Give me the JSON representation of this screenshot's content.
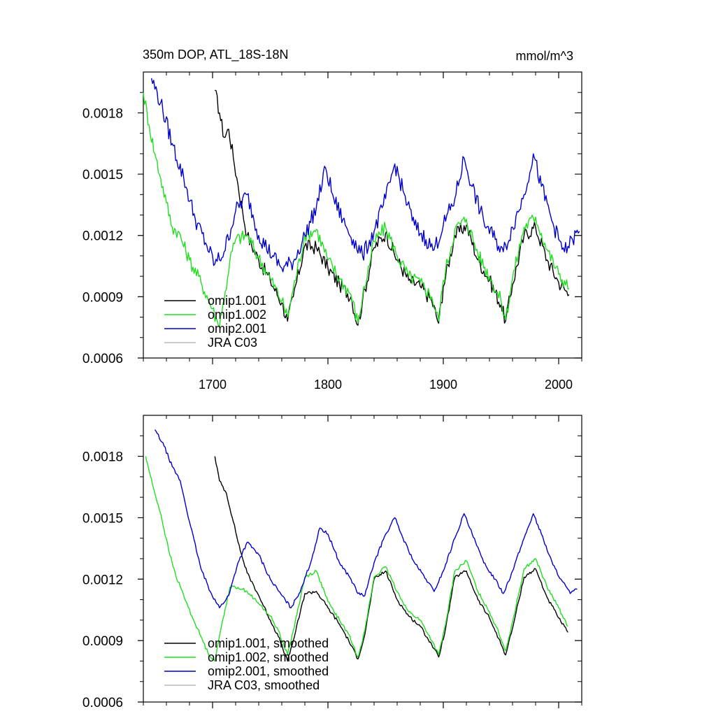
{
  "chart_data": [
    {
      "type": "line",
      "title": "350m DOP, ATL_18S-18N",
      "units": "mmol/m^3",
      "xlim": [
        1640,
        2020
      ],
      "ylim": [
        0.0006,
        0.002
      ],
      "xticks": [
        {
          "value": 1700,
          "label": "1700"
        },
        {
          "value": 1800,
          "label": "1800"
        },
        {
          "value": 1900,
          "label": "1900"
        },
        {
          "value": 2000,
          "label": "2000"
        }
      ],
      "yticks": [
        {
          "value": 0.0006,
          "label": "0.0006"
        },
        {
          "value": 0.0009,
          "label": "0.0009"
        },
        {
          "value": 0.0012,
          "label": "0.0012"
        },
        {
          "value": 0.0015,
          "label": "0.0015"
        },
        {
          "value": 0.0018,
          "label": "0.0018"
        }
      ],
      "legend": {
        "position": "bottom-left",
        "entries": [
          {
            "label": "omip1.001",
            "color": "#000000"
          },
          {
            "label": "omip1.002",
            "color": "#22dd22"
          },
          {
            "label": "omip2.001",
            "color": "#0000cc"
          },
          {
            "label": "JRA C03",
            "color": "#bbbbbb"
          }
        ]
      },
      "series": [
        {
          "name": "omip1.001",
          "color": "#000000",
          "noise": 3.5e-05,
          "x": [
            1702,
            1706,
            1710,
            1714,
            1718,
            1722,
            1726,
            1730,
            1740,
            1750,
            1760,
            1765,
            1770,
            1780,
            1790,
            1800,
            1810,
            1820,
            1826,
            1830,
            1840,
            1850,
            1860,
            1870,
            1880,
            1890,
            1896,
            1900,
            1910,
            1920,
            1930,
            1940,
            1950,
            1954,
            1960,
            1970,
            1980,
            1990,
            2000,
            2009
          ],
          "y": [
            0.00191,
            0.0018,
            0.00168,
            0.00172,
            0.00158,
            0.00145,
            0.00132,
            0.0012,
            0.00108,
            0.00098,
            0.00087,
            0.00078,
            0.0009,
            0.00115,
            0.00114,
            0.00104,
            0.00096,
            0.0009,
            0.00076,
            0.00088,
            0.00114,
            0.00121,
            0.00108,
            0.00098,
            0.00095,
            0.00088,
            0.00077,
            0.00095,
            0.0012,
            0.00125,
            0.00108,
            0.00098,
            0.00086,
            0.00078,
            0.00096,
            0.0012,
            0.00124,
            0.00108,
            0.00097,
            0.00091
          ]
        },
        {
          "name": "omip1.002",
          "color": "#22dd22",
          "noise": 3.5e-05,
          "x": [
            1640,
            1645,
            1650,
            1655,
            1660,
            1665,
            1670,
            1680,
            1690,
            1700,
            1705,
            1710,
            1715,
            1720,
            1730,
            1740,
            1750,
            1760,
            1765,
            1770,
            1780,
            1790,
            1800,
            1810,
            1820,
            1826,
            1830,
            1840,
            1850,
            1860,
            1870,
            1880,
            1890,
            1896,
            1900,
            1910,
            1920,
            1930,
            1940,
            1950,
            1954,
            1960,
            1970,
            1980,
            1990,
            2000,
            2009
          ],
          "y": [
            0.0019,
            0.00174,
            0.0016,
            0.00148,
            0.00136,
            0.00124,
            0.00122,
            0.00108,
            0.00097,
            0.00084,
            0.00076,
            0.00088,
            0.00108,
            0.00118,
            0.0012,
            0.00109,
            0.00099,
            0.00088,
            0.0008,
            0.00094,
            0.0012,
            0.00123,
            0.00108,
            0.00099,
            0.00091,
            0.00077,
            0.0009,
            0.00117,
            0.00124,
            0.0011,
            0.001,
            0.00097,
            0.0009,
            0.00078,
            0.00098,
            0.00123,
            0.00128,
            0.00111,
            0.001,
            0.00088,
            0.00079,
            0.00099,
            0.00124,
            0.00129,
            0.00113,
            0.00101,
            0.00094
          ]
        },
        {
          "name": "omip2.001",
          "color": "#0000cc",
          "noise": 4e-05,
          "x": [
            1647,
            1655,
            1665,
            1675,
            1685,
            1695,
            1702,
            1710,
            1720,
            1730,
            1740,
            1752,
            1760,
            1770,
            1780,
            1790,
            1798,
            1805,
            1815,
            1822,
            1830,
            1840,
            1850,
            1858,
            1865,
            1875,
            1885,
            1892,
            1900,
            1910,
            1918,
            1925,
            1935,
            1945,
            1952,
            1960,
            1970,
            1978,
            1985,
            1995,
            2000,
            2005,
            2012,
            2018
          ],
          "y": [
            0.00197,
            0.00185,
            0.00165,
            0.00148,
            0.00128,
            0.00115,
            0.00106,
            0.00112,
            0.00132,
            0.0014,
            0.0012,
            0.0011,
            0.00104,
            0.00107,
            0.0012,
            0.00134,
            0.00153,
            0.00138,
            0.00125,
            0.00118,
            0.0011,
            0.00122,
            0.00138,
            0.00155,
            0.00142,
            0.00125,
            0.00118,
            0.00113,
            0.00125,
            0.00138,
            0.00158,
            0.00144,
            0.00127,
            0.00118,
            0.00112,
            0.00124,
            0.0014,
            0.0016,
            0.00144,
            0.00126,
            0.00118,
            0.00112,
            0.00118,
            0.00122
          ]
        }
      ]
    },
    {
      "type": "line",
      "xlim": [
        1640,
        2020
      ],
      "ylim": [
        0.0006,
        0.002
      ],
      "xticks": [
        {
          "value": 1700,
          "label": ""
        },
        {
          "value": 1800,
          "label": ""
        },
        {
          "value": 1900,
          "label": ""
        },
        {
          "value": 2000,
          "label": ""
        }
      ],
      "yticks": [
        {
          "value": 0.0006,
          "label": "0.0006"
        },
        {
          "value": 0.0009,
          "label": "0.0009"
        },
        {
          "value": 0.0012,
          "label": "0.0012"
        },
        {
          "value": 0.0015,
          "label": "0.0015"
        },
        {
          "value": 0.0018,
          "label": "0.0018"
        }
      ],
      "legend": {
        "position": "bottom-left",
        "entries": [
          {
            "label": "omip1.001, smoothed",
            "color": "#000000"
          },
          {
            "label": "omip1.002, smoothed",
            "color": "#22dd22"
          },
          {
            "label": "omip2.001, smoothed",
            "color": "#0000cc"
          },
          {
            "label": "JRA C03, smoothed",
            "color": "#bbbbbb"
          }
        ]
      },
      "series": [
        {
          "name": "omip1.001, smoothed",
          "color": "#000000",
          "noise": 8e-06,
          "x": [
            1702,
            1706,
            1712,
            1718,
            1724,
            1730,
            1740,
            1750,
            1757,
            1765,
            1770,
            1780,
            1790,
            1800,
            1810,
            1818,
            1826,
            1832,
            1840,
            1850,
            1860,
            1870,
            1880,
            1890,
            1896,
            1902,
            1910,
            1920,
            1930,
            1940,
            1948,
            1954,
            1960,
            1970,
            1980,
            1990,
            2000,
            2008
          ],
          "y": [
            0.0018,
            0.00168,
            0.00162,
            0.00148,
            0.00134,
            0.00123,
            0.00112,
            0.001,
            0.00092,
            0.0008,
            0.0009,
            0.00113,
            0.00114,
            0.00106,
            0.00098,
            0.0009,
            0.00081,
            0.00093,
            0.0012,
            0.00124,
            0.0011,
            0.00102,
            0.00097,
            0.00088,
            0.00082,
            0.00096,
            0.00121,
            0.00124,
            0.0011,
            0.00101,
            0.00091,
            0.00083,
            0.00096,
            0.00121,
            0.00125,
            0.00111,
            0.00101,
            0.00094
          ]
        },
        {
          "name": "omip1.002, smoothed",
          "color": "#22dd22",
          "noise": 8e-06,
          "x": [
            1642,
            1648,
            1655,
            1662,
            1668,
            1675,
            1682,
            1690,
            1696,
            1702,
            1708,
            1715,
            1722,
            1730,
            1740,
            1750,
            1757,
            1765,
            1770,
            1780,
            1790,
            1800,
            1810,
            1818,
            1826,
            1832,
            1840,
            1850,
            1860,
            1870,
            1880,
            1890,
            1896,
            1902,
            1910,
            1920,
            1930,
            1940,
            1948,
            1954,
            1960,
            1970,
            1980,
            1990,
            2000,
            2008
          ],
          "y": [
            0.0018,
            0.00166,
            0.00152,
            0.00134,
            0.00122,
            0.00112,
            0.00102,
            0.00092,
            0.00084,
            0.0008,
            0.00098,
            0.00116,
            0.00116,
            0.00114,
            0.00108,
            0.00102,
            0.00095,
            0.00083,
            0.00095,
            0.00121,
            0.00124,
            0.00109,
            0.001,
            0.00093,
            0.00082,
            0.00095,
            0.00121,
            0.00126,
            0.00114,
            0.00104,
            0.001,
            0.0009,
            0.00083,
            0.00098,
            0.00124,
            0.00129,
            0.00114,
            0.00104,
            0.00094,
            0.00085,
            0.00099,
            0.00125,
            0.0013,
            0.00116,
            0.00106,
            0.00097
          ]
        },
        {
          "name": "omip2.001, smoothed",
          "color": "#0000cc",
          "noise": 8e-06,
          "x": [
            1650,
            1658,
            1665,
            1672,
            1680,
            1690,
            1698,
            1706,
            1714,
            1722,
            1730,
            1740,
            1750,
            1760,
            1768,
            1775,
            1785,
            1793,
            1800,
            1810,
            1820,
            1826,
            1832,
            1840,
            1850,
            1858,
            1865,
            1875,
            1885,
            1892,
            1900,
            1910,
            1918,
            1925,
            1935,
            1945,
            1952,
            1960,
            1970,
            1978,
            1985,
            1995,
            2002,
            2010,
            2016
          ],
          "y": [
            0.00193,
            0.00185,
            0.00175,
            0.00168,
            0.00148,
            0.00125,
            0.00114,
            0.00106,
            0.00112,
            0.00128,
            0.00138,
            0.00132,
            0.0012,
            0.00112,
            0.00106,
            0.00113,
            0.00128,
            0.00145,
            0.00142,
            0.00128,
            0.0012,
            0.00113,
            0.00112,
            0.00128,
            0.00142,
            0.0015,
            0.0014,
            0.00128,
            0.0012,
            0.00114,
            0.00124,
            0.0014,
            0.00152,
            0.00142,
            0.00128,
            0.0012,
            0.00113,
            0.00124,
            0.0014,
            0.00152,
            0.00142,
            0.00127,
            0.0012,
            0.00113,
            0.00115
          ]
        }
      ]
    }
  ]
}
